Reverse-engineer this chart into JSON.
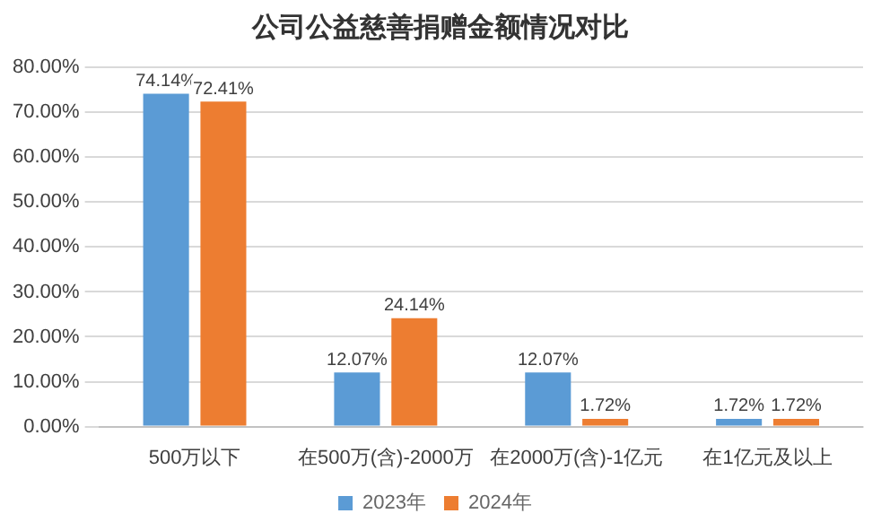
{
  "chart_data": {
    "type": "bar",
    "title": "公司公益慈善捐赠金额情况对比",
    "categories": [
      "500万以下",
      "在500万(含)-2000万",
      "在2000万(含)-1亿元",
      "在1亿元及以上"
    ],
    "series": [
      {
        "name": "2023年",
        "color": "#5b9bd5",
        "values": [
          74.14,
          12.07,
          12.07,
          1.72
        ],
        "value_labels": [
          "74.14%",
          "12.07%",
          "12.07%",
          "1.72%"
        ]
      },
      {
        "name": "2024年",
        "color": "#ed7d31",
        "values": [
          72.41,
          24.14,
          1.72,
          1.72
        ],
        "value_labels": [
          "72.41%",
          "24.14%",
          "1.72%",
          "1.72%"
        ]
      }
    ],
    "ylim": [
      0,
      80
    ],
    "yticks": [
      {
        "value": 0,
        "label": "0.00%"
      },
      {
        "value": 10,
        "label": "10.00%"
      },
      {
        "value": 20,
        "label": "20.00%"
      },
      {
        "value": 30,
        "label": "30.00%"
      },
      {
        "value": 40,
        "label": "40.00%"
      },
      {
        "value": 50,
        "label": "50.00%"
      },
      {
        "value": 60,
        "label": "60.00%"
      },
      {
        "value": 70,
        "label": "70.00%"
      },
      {
        "value": 80,
        "label": "80.00%"
      }
    ],
    "grid": "y",
    "legend": "bottom"
  }
}
